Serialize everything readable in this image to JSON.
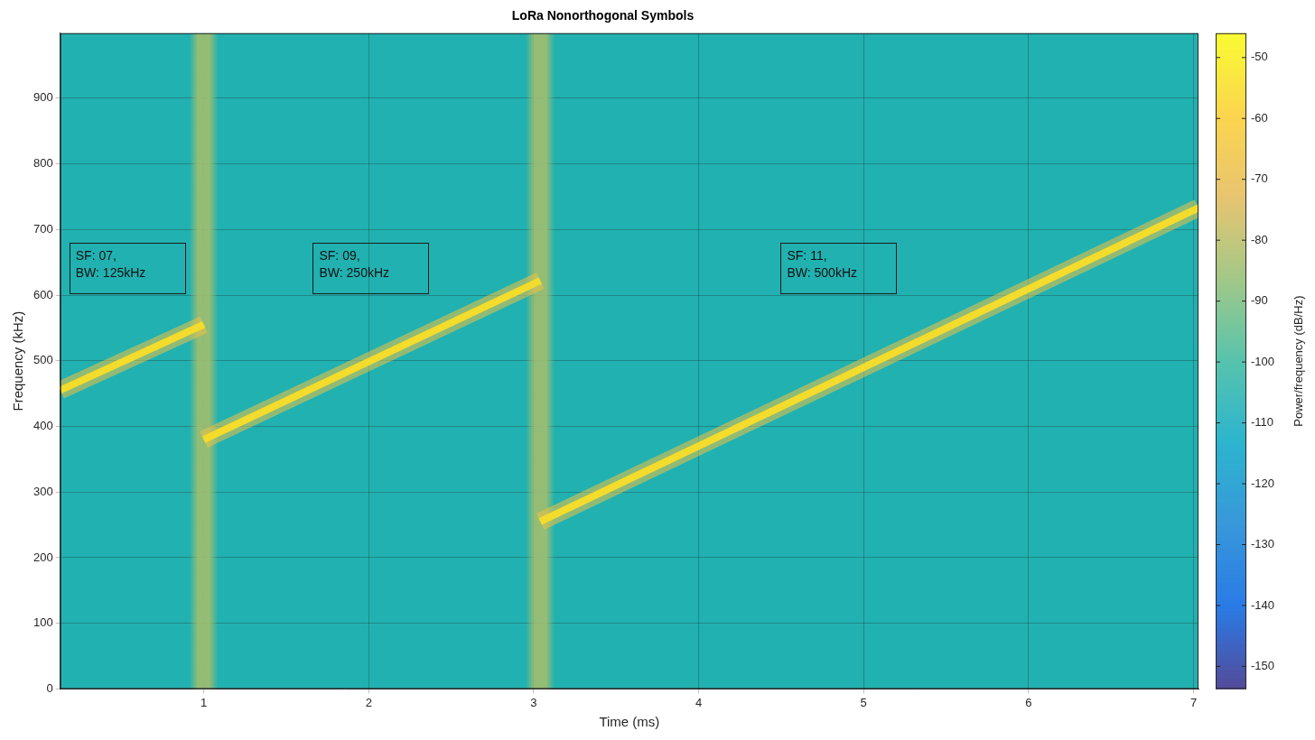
{
  "chart_data": {
    "type": "line",
    "title": "LoRa Nonorthogonal Symbols",
    "x_label": "Time (ms)",
    "y_label": "Frequency (kHz)",
    "xlim": [
      0.13,
      7.03
    ],
    "xticks": [
      1,
      2,
      3,
      4,
      5,
      6,
      7
    ],
    "ylim": [
      0,
      999
    ],
    "yticks": [
      0,
      100,
      200,
      300,
      400,
      500,
      600,
      700,
      800,
      900
    ],
    "grid": true,
    "background_level": -106,
    "series": [
      {
        "x": [
          0.13,
          1.0
        ],
        "values": [
          455,
          555
        ],
        "level": -45,
        "annotation": [
          "SF: 07,",
          "BW: 125kHz"
        ]
      },
      {
        "x": [
          1.0,
          3.04
        ],
        "values": [
          380,
          622
        ],
        "level": -45,
        "annotation": [
          "SF: 09,",
          "BW: 250kHz"
        ]
      },
      {
        "x": [
          3.04,
          7.03
        ],
        "values": [
          255,
          733
        ],
        "level": -45,
        "annotation": [
          "SF: 11,",
          "BW: 500kHz"
        ]
      }
    ],
    "transients": {
      "x": [
        1.0,
        3.04
      ],
      "level": -84
    },
    "colorbar": {
      "label": "Power/frequency (dB/Hz)",
      "range": [
        -153.7,
        -46
      ],
      "ticks": [
        -150,
        -140,
        -130,
        -120,
        -110,
        -100,
        -90,
        -80,
        -70,
        -60,
        -50
      ]
    }
  }
}
